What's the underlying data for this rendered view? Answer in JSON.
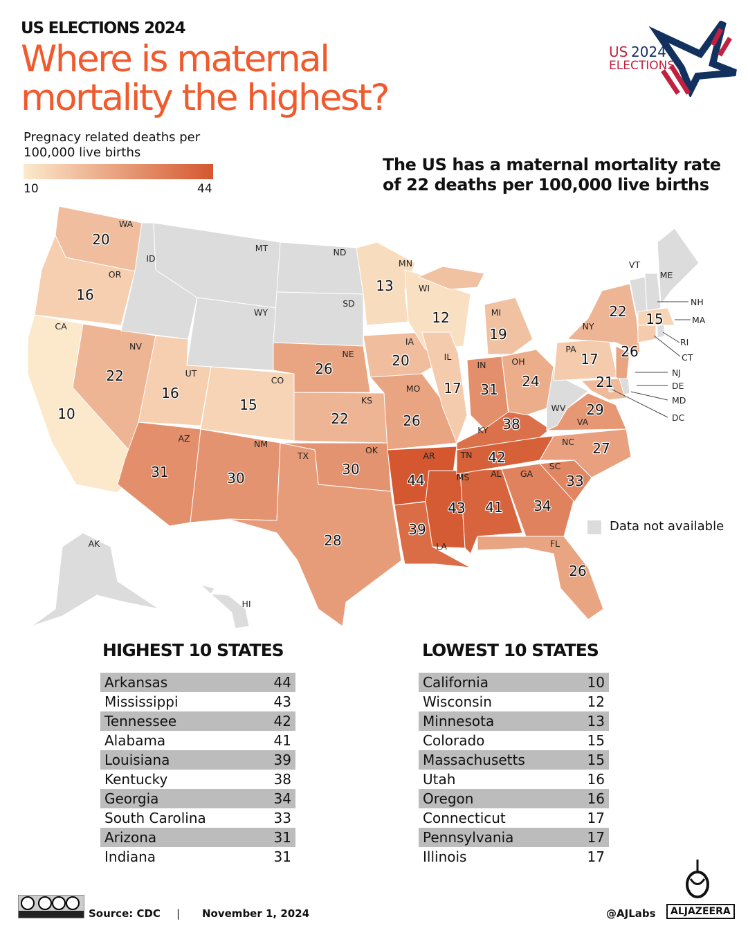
{
  "header": {
    "kicker": "US ELECTIONS 2024",
    "title": "Where is maternal mortality the highest?"
  },
  "logo": {
    "line1_a": "US",
    "line1_b": "2024",
    "line2": "ELECTIONS"
  },
  "legend": {
    "title": "Pregnacy related deaths per 100,000 live births",
    "min": "10",
    "max": "44",
    "color_min": "#fce9cc",
    "color_max": "#d4572f"
  },
  "national_note": "The US has a maternal mortality rate of 22 deaths per 100,000 live births",
  "not_available": {
    "label": "Data not available",
    "color": "#dcdcdc"
  },
  "states": {
    "WA": 20,
    "OR": 16,
    "CA": 10,
    "NV": 22,
    "UT": 16,
    "CO": 15,
    "AZ": 31,
    "NM": 30,
    "NE": 26,
    "KS": 22,
    "OK": 30,
    "TX": 28,
    "MN": 13,
    "IA": 20,
    "MO": 26,
    "AR": 44,
    "LA": 39,
    "WI": 12,
    "IL": 17,
    "MI": 19,
    "IN": 31,
    "OH": 24,
    "KY": 38,
    "TN": 42,
    "MS": 43,
    "AL": 41,
    "GA": 34,
    "FL": 26,
    "SC": 33,
    "NC": 27,
    "VA": 29,
    "PA": 17,
    "NY": 22,
    "NJ": 26,
    "MD": 21,
    "MA": 15,
    "CT": 17,
    "ID": null,
    "MT": null,
    "WY": null,
    "ND": null,
    "SD": null,
    "WV": null,
    "VT": null,
    "NH": null,
    "ME": null,
    "RI": null,
    "DE": null,
    "DC": null,
    "AK": null,
    "HI": null
  },
  "highest": {
    "title": "HIGHEST 10 STATES",
    "rows": [
      {
        "state": "Arkansas",
        "value": "44"
      },
      {
        "state": "Mississippi",
        "value": "43"
      },
      {
        "state": "Tennessee",
        "value": "42"
      },
      {
        "state": "Alabama",
        "value": "41"
      },
      {
        "state": "Louisiana",
        "value": "39"
      },
      {
        "state": "Kentucky",
        "value": "38"
      },
      {
        "state": "Georgia",
        "value": "34"
      },
      {
        "state": "South Carolina",
        "value": "33"
      },
      {
        "state": "Arizona",
        "value": "31"
      },
      {
        "state": "Indiana",
        "value": "31"
      }
    ]
  },
  "lowest": {
    "title": "LOWEST 10 STATES",
    "rows": [
      {
        "state": "California",
        "value": "10"
      },
      {
        "state": "Wisconsin",
        "value": "12"
      },
      {
        "state": "Minnesota",
        "value": "13"
      },
      {
        "state": "Colorado",
        "value": "15"
      },
      {
        "state": "Massachusetts",
        "value": "15"
      },
      {
        "state": "Utah",
        "value": "16"
      },
      {
        "state": "Oregon",
        "value": "16"
      },
      {
        "state": "Connecticut",
        "value": "17"
      },
      {
        "state": "Pennsylvania",
        "value": "17"
      },
      {
        "state": "Illinois",
        "value": "17"
      }
    ]
  },
  "footer": {
    "source": "Source:  CDC",
    "separator": "|",
    "date": "November 1, 2024",
    "handle": "@AJLabs",
    "brand": "ALJAZEERA"
  }
}
